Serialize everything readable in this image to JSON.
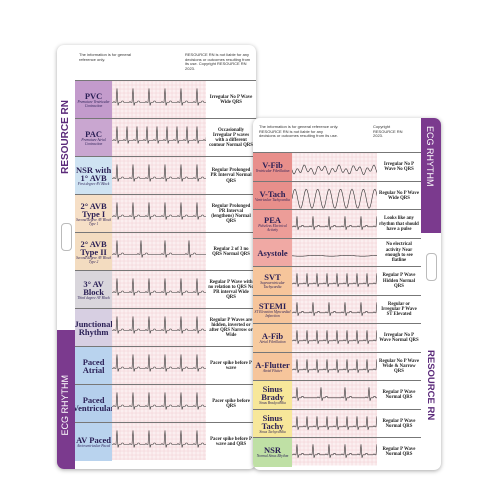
{
  "left_card": {
    "notice": "The information is for general reference only.",
    "disclaimer": "RESOURCE RN is not liable for any decisions or outcomes resulting from its use. Copyright RESOURCE RN 2023.",
    "brand": "RESOURCE RN",
    "tab": "ECG RHYTHM",
    "rows": [
      {
        "name": "PVC",
        "subtitle": "Premature Ventricular Contraction",
        "description": "Irregular No P Wave Wide QRS"
      },
      {
        "name": "PAC",
        "subtitle": "Premature Atrial Contraction",
        "description": "Occasionally Irregular P waves with a different contour Normal QRS"
      },
      {
        "name": "NSR with 1° AVB",
        "subtitle": "First degree AV Block",
        "description": "Regular Prolonged PR Interval Normal QRS"
      },
      {
        "name": "2° AVB Type I",
        "subtitle": "Second degree AV Block Type 1",
        "description": "Regular Prolonged PR Interval (lengthens) Normal QRS"
      },
      {
        "name": "2° AVB Type II",
        "subtitle": "Second degree AV Block Type 2",
        "description": "Regular 2 of 3 no QRS Normal QRS"
      },
      {
        "name": "3° AV Block",
        "subtitle": "Third degree AV Block",
        "description": "Regular P Wave with no relation to QRS No PR interval Wide QRS"
      },
      {
        "name": "Junctional Rhythm",
        "subtitle": "",
        "description": "Regular P Waves are hidden, inverted or after QRS Narrow or Wide"
      },
      {
        "name": "Paced Atrial",
        "subtitle": "",
        "description": "Pacer spike before P wave"
      },
      {
        "name": "Paced Ventricular",
        "subtitle": "",
        "description": "Pacer spike before QRS"
      },
      {
        "name": "AV Paced",
        "subtitle": "Atrioventricular Paced",
        "description": "Pacer spike before P wave and QRS"
      }
    ]
  },
  "right_card": {
    "notice": "The information is for general reference only. RESOURCE RN is not liable for any decisions or outcomes resulting from its use.",
    "disclaimer": "Copyright RESOURCE RN 2023.",
    "brand": "RESOURCE RN",
    "tab": "ECG RHYTHM",
    "rows": [
      {
        "name": "V-Fib",
        "subtitle": "Ventricular Fibrillation",
        "description": "Irregular No P Wave No QRS"
      },
      {
        "name": "V-Tach",
        "subtitle": "Ventricular Tachycardia",
        "description": "Regular No P Wave Wide QRS"
      },
      {
        "name": "PEA",
        "subtitle": "Pulseless Electrical Activity",
        "description": "Looks like any rhythm that should have a pulse"
      },
      {
        "name": "Asystole",
        "subtitle": "",
        "description": "No electrical activity Near enough to see flatline"
      },
      {
        "name": "SVT",
        "subtitle": "Supraventricular Tachycardia",
        "description": "Regular P Wave Hidden Normal QRS"
      },
      {
        "name": "STEMI",
        "subtitle": "ST Elevation Myocardial Infarction",
        "description": "Regular or Irregular P Wave ST Elevated"
      },
      {
        "name": "A-Fib",
        "subtitle": "Atrial Fibrillation",
        "description": "Irregular No P Wave Normal QRS"
      },
      {
        "name": "A-Flutter",
        "subtitle": "Atrial Flutter",
        "description": "Regular No P Wave Wide & Narrow QRS"
      },
      {
        "name": "Sinus Brady",
        "subtitle": "Sinus Bradycardia",
        "description": "Regular P Wave Normal QRS"
      },
      {
        "name": "Sinus Tachy",
        "subtitle": "Sinus Tachycardia",
        "description": "Regular P Wave Normal QRS"
      },
      {
        "name": "NSR",
        "subtitle": "Normal Sinus Rhythm",
        "description": "Regular P Wave Normal QRS"
      }
    ]
  }
}
